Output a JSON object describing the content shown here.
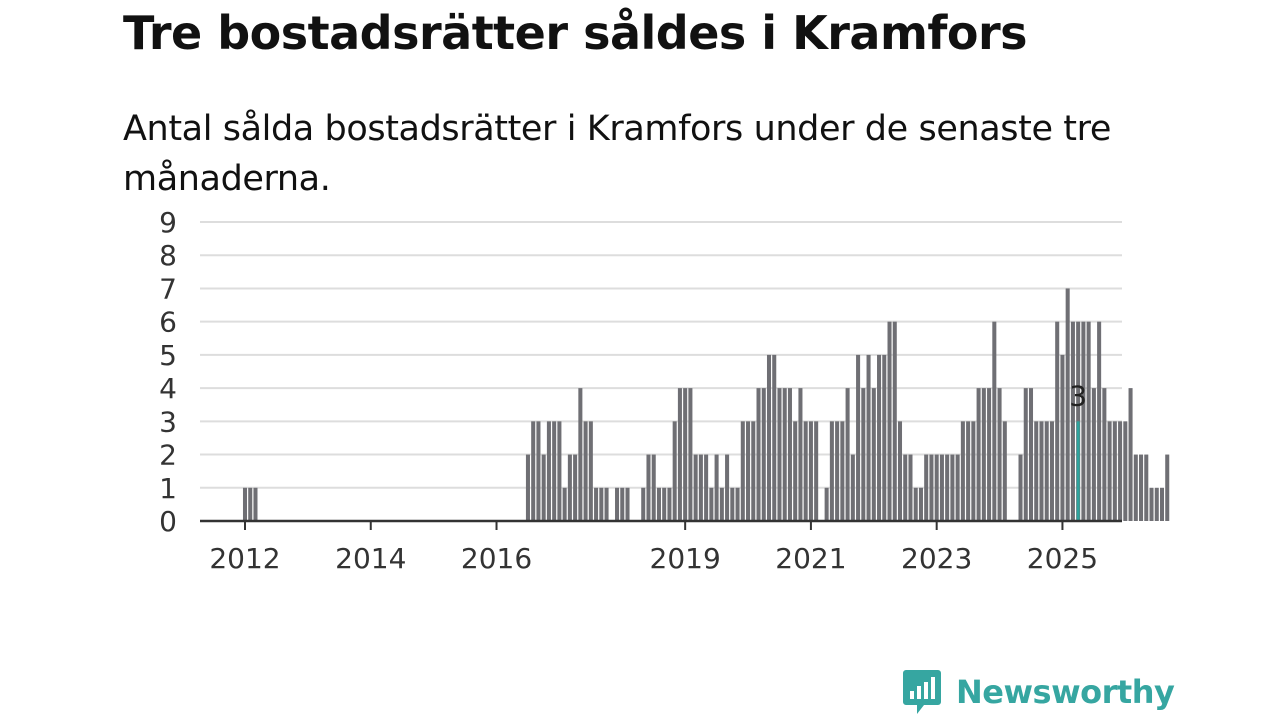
{
  "title": "Tre bostadsrätter såldes i Kramfors",
  "subtitle": "Antal sålda bostadsrätter i Kramfors under de senaste tre månaderna.",
  "brand": {
    "name": "Newsworthy",
    "icon": "newsworthy-logo-icon"
  },
  "colors": {
    "bar": "#6f6f74",
    "highlight": "#2ea39d",
    "grid": "#dddddd",
    "axis": "#333333",
    "text": "#333333",
    "brand": "#36a6a1"
  },
  "chart_data": {
    "type": "bar",
    "title": "Tre bostadsrätter såldes i Kramfors",
    "subtitle": "Antal sålda bostadsrätter i Kramfors under de senaste tre månaderna.",
    "xlabel": "",
    "ylabel": "",
    "ylim": [
      0,
      9
    ],
    "yticks": [
      0,
      1,
      2,
      3,
      4,
      5,
      6,
      7,
      8,
      9
    ],
    "xtick_labels": [
      "2012",
      "2014",
      "2016",
      "2019",
      "2021",
      "2023",
      "2025"
    ],
    "xtick_years": [
      2012,
      2014,
      2016,
      2019,
      2021,
      2023,
      2025
    ],
    "grid": true,
    "legend": "none",
    "highlight_label": "3",
    "series": [
      {
        "start": "2012-01",
        "values": [
          1,
          1,
          1
        ]
      },
      {
        "start": "2016-07",
        "values": [
          2,
          3,
          3,
          2,
          3,
          3,
          3,
          1,
          2,
          2,
          4,
          3,
          3,
          1,
          1,
          1,
          0,
          1,
          1,
          1,
          0,
          0,
          1,
          2,
          2,
          1,
          1,
          1,
          3,
          4,
          4,
          4,
          2,
          2,
          2,
          1,
          2,
          1,
          2,
          1,
          1,
          3,
          3,
          3,
          4,
          4,
          5,
          5,
          4,
          4,
          4,
          3,
          4,
          3,
          3,
          3,
          0,
          1,
          3,
          3,
          3,
          4,
          2,
          5,
          4,
          5,
          4,
          5,
          5,
          6,
          6,
          3,
          2,
          2,
          1,
          1,
          2,
          2,
          2,
          2,
          2,
          2,
          2,
          3,
          3,
          3,
          4,
          4,
          4,
          6,
          4,
          3,
          0,
          0,
          2,
          4,
          4,
          3,
          3,
          3,
          3,
          6,
          5,
          7,
          6,
          6,
          6,
          6,
          4,
          6,
          4,
          3,
          3,
          3,
          3,
          4,
          2,
          2,
          2,
          1,
          1,
          1,
          2
        ]
      },
      {
        "start": "2025-04",
        "values": [
          3
        ],
        "highlight": true
      }
    ]
  }
}
